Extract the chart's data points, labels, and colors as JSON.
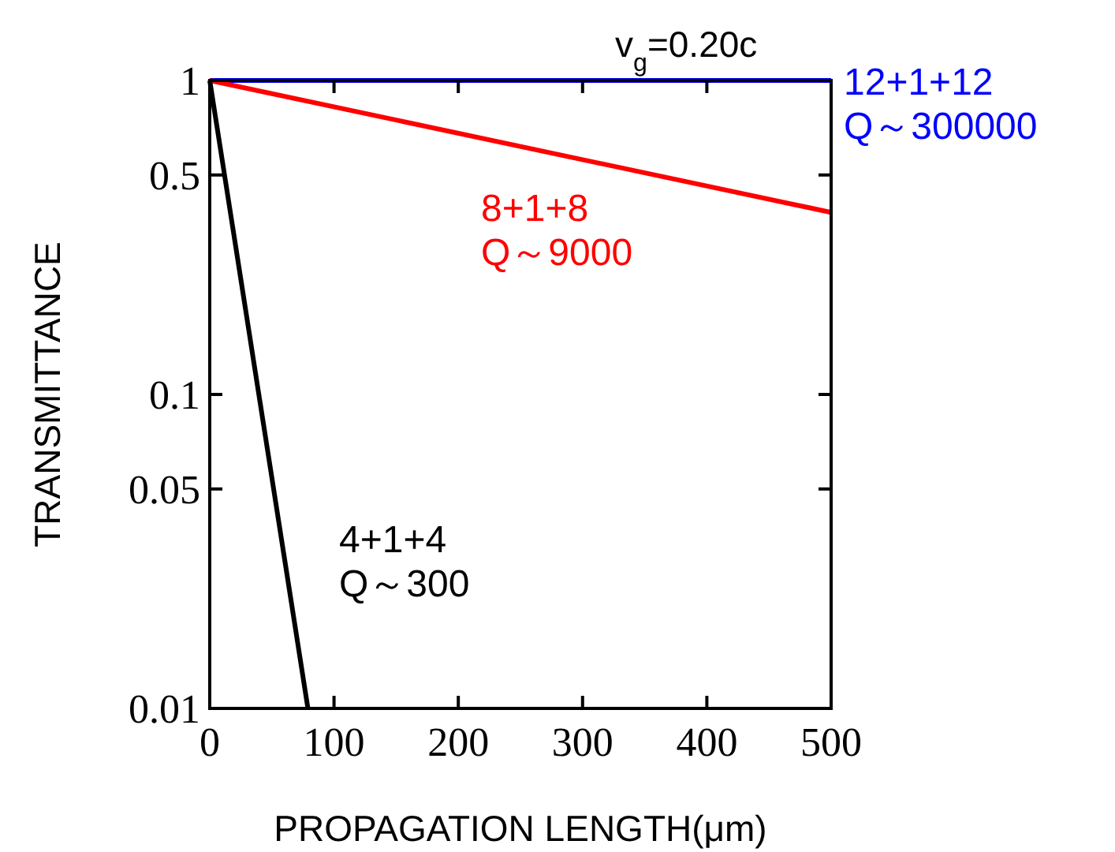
{
  "chart_data": {
    "type": "line",
    "xlabel": "PROPAGATION LENGTH(μm)",
    "ylabel": "TRANSMITTANCE",
    "log": "y",
    "xlim": [
      0,
      500
    ],
    "ylim": [
      0.01,
      1
    ],
    "xticks": [
      0,
      100,
      200,
      300,
      400,
      500
    ],
    "yticks": [
      0.01,
      0.05,
      0.1,
      0.5,
      1
    ],
    "grid": false,
    "marker": "none",
    "line_style": "solid",
    "annotations": [
      "v$_{g}$=0.20c"
    ],
    "series": [
      {
        "name": "12+1+12\nQ～300000",
        "color": "#0000ff",
        "x": [
          0,
          500
        ],
        "values": [
          1,
          1
        ]
      },
      {
        "name": "8+1+8\nQ～9000",
        "color": "#ff0000",
        "x": [
          0,
          500
        ],
        "values": [
          1,
          0.38
        ]
      },
      {
        "name": "4+1+4\nQ～300",
        "color": "#000000",
        "x": [
          0,
          79
        ],
        "values": [
          1,
          0.01
        ]
      }
    ]
  }
}
